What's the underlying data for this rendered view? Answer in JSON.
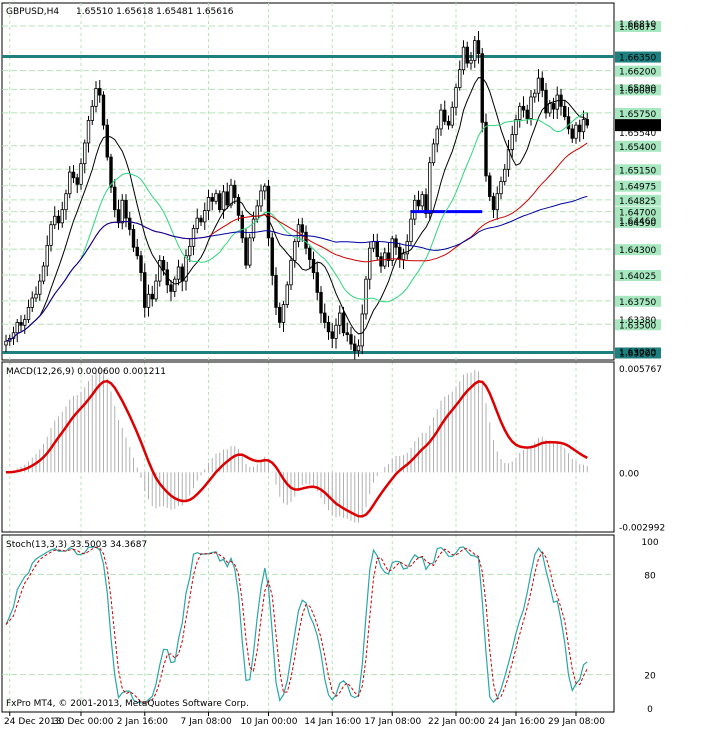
{
  "window": {
    "symbol_title": "GBPUSD,H4",
    "ohlc": "1.65510 1.65618 1.65481 1.65616",
    "copyright": "FxPro MT4, © 2001-2013, MetaQuotes Software Corp."
  },
  "colors": {
    "background": "#ffffff",
    "grid": "#b7e3b7",
    "candle": "#000000",
    "level_line": "#1e7f7f",
    "level_label_bg": "#a8e8c0",
    "ma_fast": "#000000",
    "ma_green": "#2fd67c",
    "ma_red": "#cc0000",
    "ma_blue": "#0000a0",
    "macd_signal": "#dd0000",
    "macd_hist": "#b0b0b0",
    "stoch_main": "#2aa6a6",
    "stoch_signal": "#cc0000",
    "support_segment": "#0000ff"
  },
  "chart_data": {
    "type": "candlestick",
    "symbol": "GBPUSD",
    "timeframe": "H4",
    "price_axis": {
      "range": [
        1.6312,
        1.6692
      ],
      "ticks": [
        "1.66810",
        "1.65890",
        "1.64460",
        "1.63380",
        "1.63020"
      ],
      "current_price": "1.65616",
      "covered_label": "1.65540"
    },
    "horizontal_levels": [
      {
        "price": 1.66675,
        "label": "1.66675",
        "style": "dashed"
      },
      {
        "price": 1.6635,
        "label": "1.66350",
        "style": "thick"
      },
      {
        "price": 1.662,
        "label": "1.66200",
        "style": "dashed"
      },
      {
        "price": 1.66,
        "label": "1.66000",
        "style": "dashed"
      },
      {
        "price": 1.6575,
        "label": "1.65750",
        "style": "dashed"
      },
      {
        "price": 1.654,
        "label": "1.65400",
        "style": "dashed"
      },
      {
        "price": 1.6515,
        "label": "1.65150",
        "style": "dashed"
      },
      {
        "price": 1.64975,
        "label": "1.64975",
        "style": "dashed"
      },
      {
        "price": 1.64825,
        "label": "1.64825",
        "style": "dashed"
      },
      {
        "price": 1.647,
        "label": "1.64700",
        "style": "dashed"
      },
      {
        "price": 1.6459,
        "label": "1.64590",
        "style": "dashed"
      },
      {
        "price": 1.643,
        "label": "1.64300",
        "style": "dashed"
      },
      {
        "price": 1.64025,
        "label": "1.64025",
        "style": "dashed"
      },
      {
        "price": 1.6375,
        "label": "1.63750",
        "style": "dashed"
      },
      {
        "price": 1.635,
        "label": "1.63500",
        "style": "dashed"
      },
      {
        "price": 1.632,
        "label": "1.63200",
        "style": "thick"
      }
    ],
    "support_segment": {
      "from_candle": 108,
      "to_candle": 127,
      "price": 1.647
    },
    "x_axis_labels": [
      {
        "label": "24 Dec 2013",
        "candle": 1
      },
      {
        "label": "30 Dec 00:00",
        "candle": 20
      },
      {
        "label": "2 Jan 16:00",
        "candle": 37
      },
      {
        "label": "7 Jan 08:00",
        "candle": 54
      },
      {
        "label": "10 Jan 00:00",
        "candle": 70
      },
      {
        "label": "14 Jan 16:00",
        "candle": 87
      },
      {
        "label": "17 Jan 08:00",
        "candle": 103
      },
      {
        "label": "22 Jan 00:00",
        "candle": 120
      },
      {
        "label": "24 Jan 16:00",
        "candle": 136
      },
      {
        "label": "29 Jan 08:00",
        "candle": 152
      }
    ],
    "close_series": [
      1.6332,
      1.6335,
      1.6341,
      1.6352,
      1.6349,
      1.6355,
      1.6368,
      1.6378,
      1.6382,
      1.6396,
      1.6412,
      1.6434,
      1.6456,
      1.6465,
      1.6458,
      1.6472,
      1.6489,
      1.6512,
      1.6506,
      1.6499,
      1.6521,
      1.6543,
      1.6567,
      1.6582,
      1.6601,
      1.6594,
      1.6562,
      1.6528,
      1.6496,
      1.6472,
      1.6458,
      1.6482,
      1.6463,
      1.6451,
      1.6432,
      1.6423,
      1.6405,
      1.6368,
      1.6382,
      1.6377,
      1.6396,
      1.6418,
      1.6408,
      1.6392,
      1.6385,
      1.6398,
      1.6411,
      1.6396,
      1.6423,
      1.6433,
      1.6452,
      1.6463,
      1.6459,
      1.6471,
      1.6485,
      1.6481,
      1.6489,
      1.6472,
      1.6491,
      1.6477,
      1.6498,
      1.6485,
      1.6466,
      1.6442,
      1.6413,
      1.6442,
      1.6462,
      1.6476,
      1.6492,
      1.6497,
      1.6442,
      1.6402,
      1.6368,
      1.6352,
      1.6371,
      1.6392,
      1.6418,
      1.6438,
      1.6456,
      1.6448,
      1.6431,
      1.6419,
      1.6405,
      1.6384,
      1.6362,
      1.6352,
      1.6342,
      1.6335,
      1.6349,
      1.6362,
      1.6341,
      1.6339,
      1.6329,
      1.6322,
      1.6327,
      1.6361,
      1.6398,
      1.6431,
      1.6438,
      1.6422,
      1.6412,
      1.6426,
      1.6418,
      1.6441,
      1.6432,
      1.6419,
      1.6425,
      1.6438,
      1.6462,
      1.6482,
      1.6476,
      1.6488,
      1.6468,
      1.6522,
      1.6542,
      1.6558,
      1.6578,
      1.6566,
      1.6562,
      1.6581,
      1.6602,
      1.6621,
      1.6645,
      1.6628,
      1.6631,
      1.6652,
      1.6638,
      1.6565,
      1.6508,
      1.6486,
      1.6472,
      1.6489,
      1.6502,
      1.6515,
      1.6536,
      1.6552,
      1.6568,
      1.6582,
      1.6578,
      1.6569,
      1.6592,
      1.6596,
      1.6612,
      1.6599,
      1.6575,
      1.6585,
      1.6579,
      1.6594,
      1.6582,
      1.6571,
      1.6558,
      1.6548,
      1.6562,
      1.6555,
      1.6568,
      1.6562
    ],
    "moving_averages": [
      {
        "name": "",
        "color": "#000000",
        "period": 10
      },
      {
        "name": "",
        "color": "#2fd67c",
        "period": 21
      },
      {
        "name": "",
        "color": "#cc0000",
        "period": 55
      },
      {
        "name": "",
        "color": "#0000a0",
        "period": 89
      }
    ],
    "macd": {
      "label": "MACD(12,26,9) 0.000600 0.001211",
      "ticks": [
        {
          "label": "0.005767",
          "value": 0.005767
        },
        {
          "label": "0.00",
          "value": 0.0
        },
        {
          "label": "-0.002992",
          "value": -0.002992
        }
      ],
      "range": [
        -0.0033,
        0.0061
      ]
    },
    "stochastic": {
      "label": "Stoch(13,3,3) 33.5003 34.3687",
      "ticks": [
        {
          "label": "100",
          "value": 100
        },
        {
          "label": "80",
          "value": 80
        },
        {
          "label": "20",
          "value": 20
        },
        {
          "label": "0",
          "value": 0
        }
      ],
      "range": [
        0,
        100
      ],
      "levels": [
        80,
        20
      ]
    }
  }
}
